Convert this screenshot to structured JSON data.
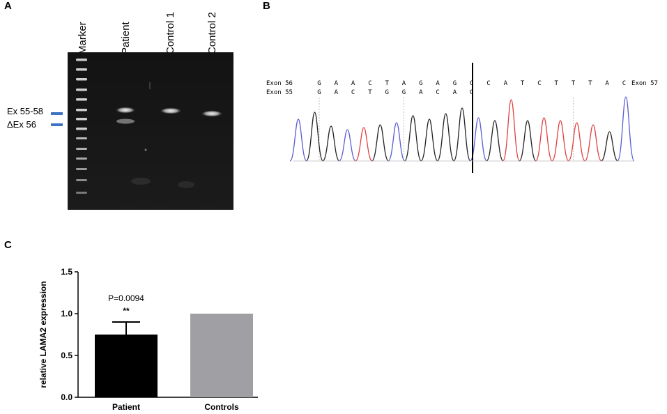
{
  "panel_a": {
    "letter": "A",
    "lanes": [
      "Marker",
      "Patient",
      "Control 1",
      "Control 2"
    ],
    "band_labels": [
      "Ex 55-58",
      "ΔEx 56"
    ],
    "band_mark_color": "#3f73c1"
  },
  "panel_b": {
    "letter": "B",
    "row1": {
      "left": "Exon 56",
      "bases": [
        "G",
        "A",
        "A",
        "C",
        "T",
        "A",
        "G",
        "A",
        "G",
        "G",
        "C",
        "A",
        "T",
        "C",
        "T",
        "T",
        "T",
        "A",
        "C"
      ],
      "right": "Exon 57"
    },
    "row2": {
      "left": "Exon 55",
      "bases": [
        "G",
        "A",
        "C",
        "T",
        "G",
        "G",
        "A",
        "C",
        "A",
        "G"
      ]
    },
    "trace_colors": {
      "A": "#3a9a3a",
      "C": "#5b5bd6",
      "G": "#222222",
      "T": "#e04040"
    },
    "peak_sequence": [
      "C",
      "G",
      "G",
      "C",
      "T",
      "G",
      "C",
      "G",
      "G",
      "G",
      "G",
      "C",
      "G",
      "T",
      "G",
      "T",
      "T",
      "T",
      "T",
      "G",
      "C"
    ]
  },
  "panel_c": {
    "letter": "C",
    "annotation": "P=0.0094",
    "significance": "**"
  },
  "chart_data": {
    "type": "bar",
    "categories": [
      "Patient",
      "Controls"
    ],
    "values": [
      0.75,
      1.0
    ],
    "error": [
      0.15,
      0
    ],
    "colors": [
      "#000000",
      "#a0a0a4"
    ],
    "ylabel": "relative LAMA2 expression",
    "ylim": [
      0,
      1.5
    ],
    "yticks": [
      "0.0",
      "0.5",
      "1.0",
      "1.5"
    ],
    "yticks_values": [
      0,
      0.5,
      1.0,
      1.5
    ]
  }
}
